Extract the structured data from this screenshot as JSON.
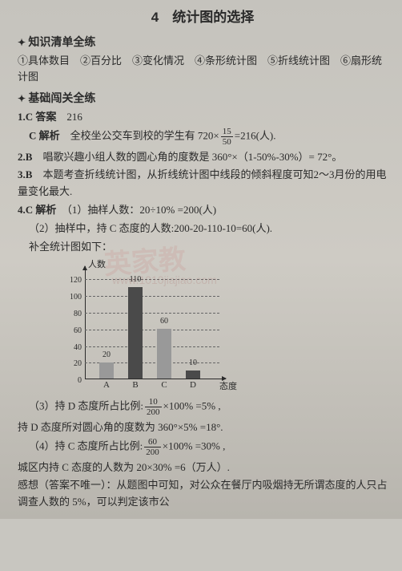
{
  "title": "4　统计图的选择",
  "s1": {
    "h": "知识清单全练",
    "items": "①具体数目　②百分比　③变化情况　④条形统计图　⑤折线统计图　⑥扇形统计图"
  },
  "s2": {
    "h": "基础闯关全练"
  },
  "q1": {
    "num": "1.C",
    "ansLabel": "答案",
    "ans": "216",
    "expLabel": "C 解析",
    "exp_a": "全校坐公交车到校的学生有 720×",
    "exp_b": "=216(人).",
    "frac_n": "15",
    "frac_d": "50"
  },
  "q2": {
    "num": "2.B",
    "text": "唱歌兴趣小组人数的圆心角的度数是 360°×（1-50%-30%）= 72°。"
  },
  "q3": {
    "num": "3.B",
    "text": "本题考查折线统计图，从折线统计图中线段的倾斜程度可知2～3月份的用电量变化最大."
  },
  "q4": {
    "num": "4.C 解析",
    "p1": "（1）抽样人数：20÷10% =200(人)",
    "p2": "（2）抽样中，持 C 态度的人数:200-20-110-10=60(人).",
    "p3": "补全统计图如下：",
    "chart": {
      "ylabel": "人数",
      "xlabel": "态度",
      "ymax": 120,
      "ystep": 20,
      "bars": [
        {
          "cat": "A",
          "val": 20,
          "shade": "light"
        },
        {
          "cat": "B",
          "val": 110,
          "shade": "dark"
        },
        {
          "cat": "C",
          "val": 60,
          "shade": "light"
        },
        {
          "cat": "D",
          "val": 10,
          "shade": "dark"
        }
      ],
      "axis_color": "#2a2a2a",
      "bg": "transparent"
    },
    "p4_a": "（3）持 D 态度所占比例:",
    "p4_b": "×100% =5% ,",
    "f4n": "10",
    "f4d": "200",
    "p5": "持 D 态度所对圆心角的度数为 360°×5% =18°.",
    "p6_a": "（4）持 C 态度所占比例:",
    "p6_b": "×100% =30% ,",
    "f6n": "60",
    "f6d": "200",
    "p7": "城区内持 C 态度的人数为 20×30% =6（万人）.",
    "p8": "感想（答案不唯一）：从题图中可知，对公众在餐厅内吸烟持无所谓态度的人只占调查人数的 5%，可以判定该市公"
  },
  "wm": {
    "t1": "英家教",
    "t2": "www.1010jiajiao.com"
  }
}
